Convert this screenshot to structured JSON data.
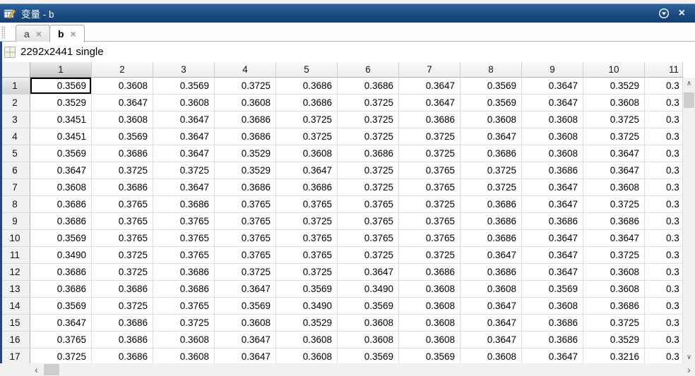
{
  "panel": {
    "title": "变量 - b"
  },
  "glyphs": {
    "close": "×",
    "tab_close": "×",
    "up": "∧",
    "down": "∨",
    "left": "‹",
    "right": "›"
  },
  "tabs": [
    {
      "label": "a",
      "active": false
    },
    {
      "label": "b",
      "active": true
    }
  ],
  "info": {
    "dimensions": "2292x2441 single"
  },
  "colors": {
    "titlebar_blue": "#1b4b82",
    "panel_border_blue": "#1b4b82",
    "header_gray": "#f1f1f1",
    "selected_header_gray": "#c7c7c7",
    "grid_line": "#dcdcdc",
    "scrollbar_thumb": "#cdcdcd",
    "selection_border": "#000000"
  },
  "table": {
    "col_headers": [
      "1",
      "2",
      "3",
      "4",
      "5",
      "6",
      "7",
      "8",
      "9",
      "10",
      "11"
    ],
    "row_headers": [
      "1",
      "2",
      "3",
      "4",
      "5",
      "6",
      "7",
      "8",
      "9",
      "10",
      "11",
      "12",
      "13",
      "14",
      "15",
      "16",
      "17"
    ],
    "selection": {
      "row": 1,
      "col": 1
    },
    "col11_visible": "0.3",
    "rows": [
      [
        "0.3569",
        "0.3608",
        "0.3569",
        "0.3725",
        "0.3686",
        "0.3686",
        "0.3647",
        "0.3569",
        "0.3647",
        "0.3529"
      ],
      [
        "0.3529",
        "0.3647",
        "0.3608",
        "0.3608",
        "0.3686",
        "0.3725",
        "0.3647",
        "0.3569",
        "0.3647",
        "0.3608"
      ],
      [
        "0.3451",
        "0.3608",
        "0.3647",
        "0.3686",
        "0.3725",
        "0.3725",
        "0.3686",
        "0.3608",
        "0.3608",
        "0.3725"
      ],
      [
        "0.3451",
        "0.3569",
        "0.3647",
        "0.3686",
        "0.3725",
        "0.3725",
        "0.3725",
        "0.3647",
        "0.3608",
        "0.3725"
      ],
      [
        "0.3569",
        "0.3686",
        "0.3647",
        "0.3529",
        "0.3608",
        "0.3686",
        "0.3725",
        "0.3686",
        "0.3608",
        "0.3647"
      ],
      [
        "0.3647",
        "0.3725",
        "0.3725",
        "0.3529",
        "0.3647",
        "0.3725",
        "0.3765",
        "0.3725",
        "0.3686",
        "0.3647"
      ],
      [
        "0.3608",
        "0.3686",
        "0.3647",
        "0.3686",
        "0.3686",
        "0.3725",
        "0.3765",
        "0.3725",
        "0.3647",
        "0.3608"
      ],
      [
        "0.3686",
        "0.3765",
        "0.3686",
        "0.3765",
        "0.3765",
        "0.3765",
        "0.3725",
        "0.3686",
        "0.3647",
        "0.3725"
      ],
      [
        "0.3686",
        "0.3765",
        "0.3765",
        "0.3765",
        "0.3725",
        "0.3765",
        "0.3765",
        "0.3686",
        "0.3686",
        "0.3686"
      ],
      [
        "0.3569",
        "0.3765",
        "0.3765",
        "0.3765",
        "0.3765",
        "0.3765",
        "0.3765",
        "0.3686",
        "0.3647",
        "0.3647"
      ],
      [
        "0.3490",
        "0.3725",
        "0.3765",
        "0.3765",
        "0.3765",
        "0.3725",
        "0.3725",
        "0.3647",
        "0.3647",
        "0.3725"
      ],
      [
        "0.3686",
        "0.3725",
        "0.3686",
        "0.3725",
        "0.3725",
        "0.3647",
        "0.3686",
        "0.3686",
        "0.3647",
        "0.3608"
      ],
      [
        "0.3686",
        "0.3686",
        "0.3686",
        "0.3647",
        "0.3569",
        "0.3490",
        "0.3608",
        "0.3608",
        "0.3569",
        "0.3608"
      ],
      [
        "0.3569",
        "0.3725",
        "0.3765",
        "0.3569",
        "0.3490",
        "0.3569",
        "0.3608",
        "0.3647",
        "0.3608",
        "0.3686"
      ],
      [
        "0.3647",
        "0.3686",
        "0.3725",
        "0.3608",
        "0.3529",
        "0.3608",
        "0.3608",
        "0.3647",
        "0.3686",
        "0.3725"
      ],
      [
        "0.3765",
        "0.3686",
        "0.3608",
        "0.3647",
        "0.3608",
        "0.3608",
        "0.3608",
        "0.3647",
        "0.3686",
        "0.3529"
      ],
      [
        "0.3725",
        "0.3686",
        "0.3608",
        "0.3647",
        "0.3608",
        "0.3569",
        "0.3569",
        "0.3608",
        "0.3647",
        "0.3216"
      ]
    ]
  }
}
